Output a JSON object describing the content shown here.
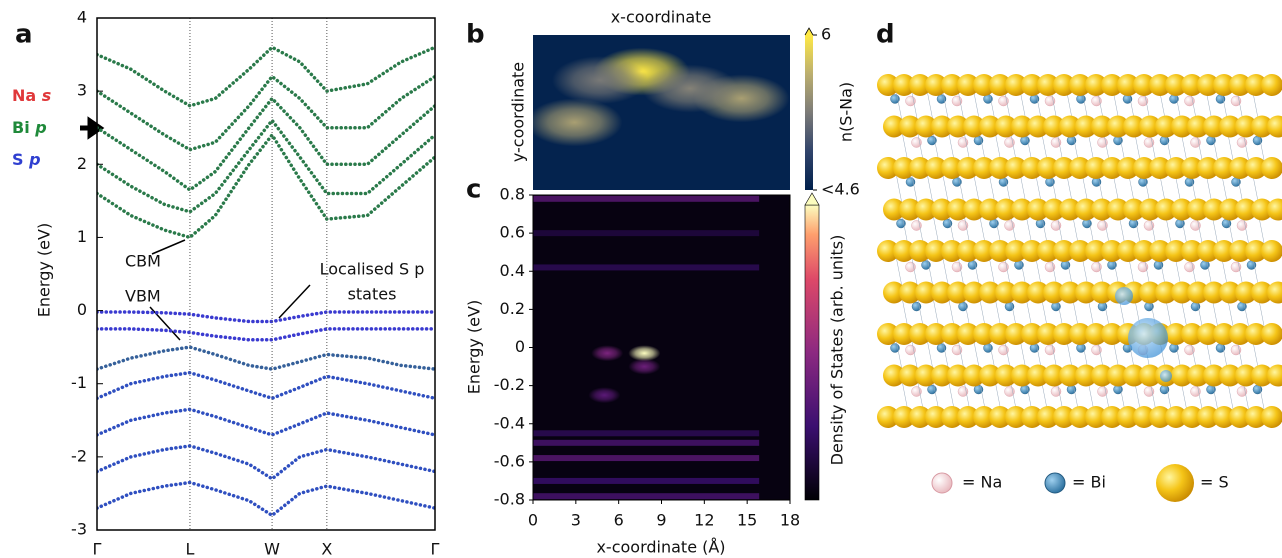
{
  "chart_data": [
    {
      "type": "band",
      "panel": "a",
      "ylabel": "Energy (eV)",
      "ylim": [
        -3,
        4
      ],
      "yticks": [
        -3,
        -2,
        -1,
        0,
        1,
        2,
        3,
        4
      ],
      "xlim": [
        0,
        1
      ],
      "xticks": [
        {
          "value": 0,
          "label": "Γ"
        },
        {
          "value": 0.275,
          "label": "L"
        },
        {
          "value": 0.518,
          "label": "W"
        },
        {
          "value": 0.68,
          "label": "X"
        },
        {
          "value": 1,
          "label": "Γ"
        }
      ],
      "legend": [
        {
          "element": "Na",
          "orbital": "s",
          "color": "#e0383a"
        },
        {
          "element": "Bi",
          "orbital": "p",
          "color": "#1f8a3a"
        },
        {
          "element": "S",
          "orbital": "p",
          "color": "#2f3fd0"
        }
      ],
      "annotations": [
        "CBM",
        "VBM",
        "Localised S p",
        "states"
      ],
      "x": [
        0,
        0.1,
        0.2,
        0.275,
        0.35,
        0.45,
        0.518,
        0.6,
        0.68,
        0.8,
        0.9,
        1
      ],
      "bands": [
        {
          "color": "#2a7a4a",
          "values": [
            1.6,
            1.3,
            1.1,
            1.0,
            1.3,
            2.0,
            2.4,
            1.8,
            1.25,
            1.3,
            1.7,
            2.1
          ]
        },
        {
          "color": "#2a7a4a",
          "values": [
            2.0,
            1.7,
            1.45,
            1.35,
            1.6,
            2.2,
            2.6,
            2.1,
            1.6,
            1.6,
            2.0,
            2.4
          ]
        },
        {
          "color": "#2a7a4a",
          "values": [
            2.5,
            2.2,
            1.9,
            1.65,
            1.9,
            2.5,
            2.9,
            2.5,
            2.0,
            2.0,
            2.4,
            2.8
          ]
        },
        {
          "color": "#2a7a4a",
          "values": [
            3.0,
            2.7,
            2.4,
            2.2,
            2.3,
            2.8,
            3.2,
            2.9,
            2.5,
            2.5,
            2.9,
            3.2
          ]
        },
        {
          "color": "#2a7a4a",
          "values": [
            3.5,
            3.3,
            3.0,
            2.8,
            2.9,
            3.3,
            3.6,
            3.4,
            3.0,
            3.1,
            3.4,
            3.6
          ]
        },
        {
          "color": "#3a3ad0",
          "values": [
            -0.02,
            -0.02,
            -0.03,
            -0.05,
            -0.1,
            -0.15,
            -0.15,
            -0.08,
            -0.02,
            -0.02,
            -0.02,
            -0.02
          ]
        },
        {
          "color": "#3a3ad0",
          "values": [
            -0.25,
            -0.25,
            -0.27,
            -0.3,
            -0.35,
            -0.4,
            -0.4,
            -0.32,
            -0.25,
            -0.25,
            -0.25,
            -0.25
          ]
        },
        {
          "color": "#35609a",
          "values": [
            -0.8,
            -0.65,
            -0.55,
            -0.5,
            -0.6,
            -0.75,
            -0.8,
            -0.7,
            -0.6,
            -0.65,
            -0.75,
            -0.8
          ]
        },
        {
          "color": "#2f4fc0",
          "values": [
            -1.2,
            -1.0,
            -0.9,
            -0.85,
            -0.95,
            -1.1,
            -1.2,
            -1.05,
            -0.9,
            -1.0,
            -1.1,
            -1.2
          ]
        },
        {
          "color": "#2f4fc0",
          "values": [
            -1.7,
            -1.5,
            -1.4,
            -1.35,
            -1.45,
            -1.6,
            -1.7,
            -1.55,
            -1.4,
            -1.5,
            -1.6,
            -1.7
          ]
        },
        {
          "color": "#2f4fc0",
          "values": [
            -2.2,
            -2.0,
            -1.9,
            -1.85,
            -1.95,
            -2.1,
            -2.3,
            -2.0,
            -1.9,
            -2.0,
            -2.1,
            -2.2
          ]
        },
        {
          "color": "#2f4fc0",
          "values": [
            -2.7,
            -2.5,
            -2.4,
            -2.35,
            -2.45,
            -2.6,
            -2.8,
            -2.5,
            -2.4,
            -2.5,
            -2.6,
            -2.7
          ]
        }
      ]
    },
    {
      "type": "density-map",
      "panel": "b",
      "title": "x-coordinate",
      "ylabel": "y-coordinate",
      "colorbar_label": "n(S-Na)",
      "xlim": [
        0,
        18
      ],
      "ylim": [
        0,
        11
      ],
      "zlim": [
        4.6,
        6
      ],
      "zticks": [
        6,
        {
          "value": 4.6,
          "label": "<4.6"
        }
      ],
      "colormap": "cividis",
      "x": [
        7.6,
        2.9,
        14.6,
        11,
        4.7
      ],
      "y": [
        8.4,
        4.8,
        6.5,
        7.2,
        7.8
      ],
      "values": [
        6,
        5.3,
        5.3,
        5.0,
        4.9
      ]
    },
    {
      "type": "heatmap",
      "panel": "c",
      "xlabel": "x-coordinate (Å)",
      "ylabel": "Energy (eV)",
      "colorbar_label": "Density of States (arb. units)",
      "xlim": [
        0,
        18
      ],
      "xticks": [
        0,
        3,
        6,
        9,
        12,
        15,
        18
      ],
      "ylim": [
        -0.8,
        0.8
      ],
      "yticks": [
        -0.8,
        -0.6,
        -0.4,
        -0.2,
        0,
        0.2,
        0.4,
        0.6,
        0.8
      ],
      "zlim": [
        0,
        1
      ],
      "colormap": "magma",
      "x": [
        5.2,
        7.8,
        7.8,
        5.0
      ],
      "y": [
        -0.03,
        -0.03,
        -0.1,
        -0.25
      ],
      "values": [
        0.45,
        1,
        0.4,
        0.35
      ],
      "rows": {
        "y": [
          0.78,
          0.6,
          0.42,
          -0.45,
          -0.5,
          -0.58,
          -0.7,
          -0.78
        ],
        "values": [
          0.35,
          0.15,
          0.2,
          0.2,
          0.3,
          0.35,
          0.25,
          0.3
        ]
      }
    }
  ],
  "panel_d": {
    "label": "d",
    "legend": [
      "= Na",
      "= Bi",
      "= S"
    ]
  }
}
